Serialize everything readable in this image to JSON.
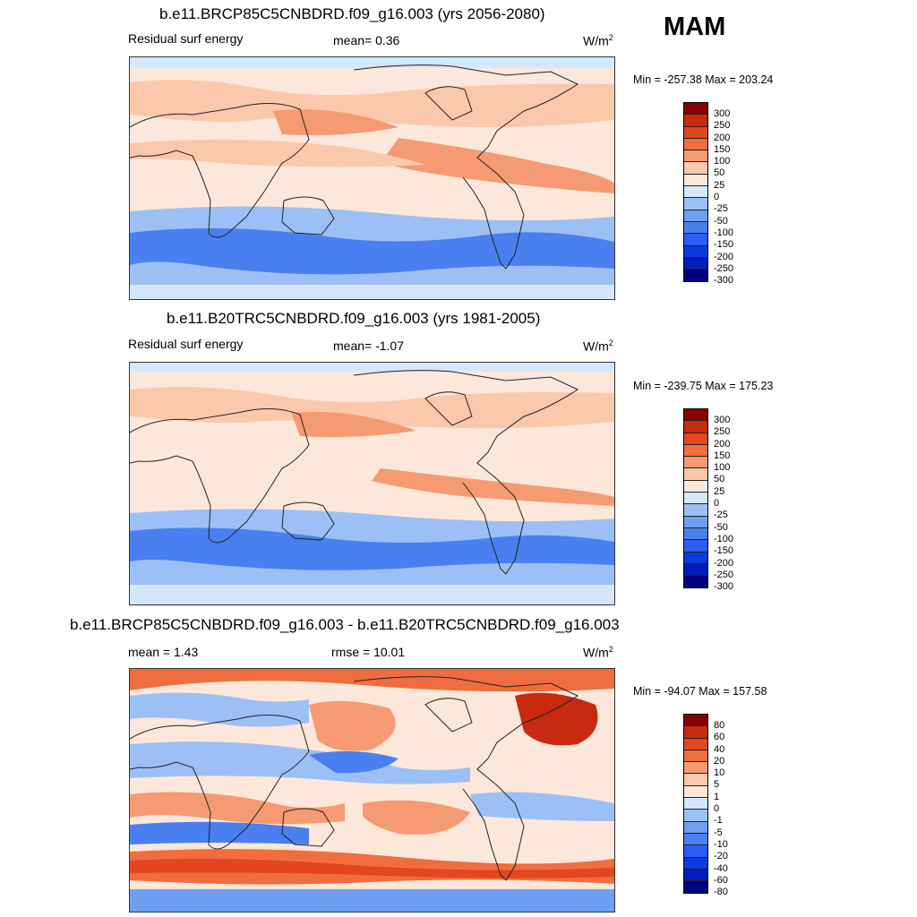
{
  "season": "MAM",
  "units": "W/m",
  "units_sup": "2",
  "colors": {
    "residual_scale": [
      "#00007a",
      "#001dbf",
      "#0a3be0",
      "#2a5ef5",
      "#4a7ff0",
      "#6f9ff0",
      "#9cc0f5",
      "#d5e7fb",
      "#fde7da",
      "#fbc8ac",
      "#f59a72",
      "#ef6d3f",
      "#e2471f",
      "#c82a10",
      "#8a0000"
    ],
    "difference_scale": [
      "#00007a",
      "#001dbf",
      "#0a3be0",
      "#2a5ef5",
      "#4a7ff0",
      "#6f9ff0",
      "#9cc0f5",
      "#d5e7fb",
      "#fde7da",
      "#fbc8ac",
      "#f59a72",
      "#ef6d3f",
      "#e2471f",
      "#c82a10",
      "#8a0000"
    ]
  },
  "chart_data": [
    {
      "type": "heatmap",
      "title": "b.e11.BRCP85C5CNBDRD.f09_g16.003 (yrs 2056-2080)",
      "left_label": "Residual surf energy",
      "stat_text": "mean=   0.36",
      "minmax": "Min = -257.38 Max = 203.24",
      "min": -257.38,
      "max": 203.24,
      "mean": 0.36,
      "colorbar_labels": [
        "300",
        "250",
        "200",
        "150",
        "100",
        "50",
        "25",
        "0",
        "-25",
        "-50",
        "-100",
        "-150",
        "-200",
        "-250",
        "-300"
      ]
    },
    {
      "type": "heatmap",
      "title": "b.e11.B20TRC5CNBDRD.f09_g16.003 (yrs 1981-2005)",
      "left_label": "Residual surf energy",
      "stat_text": "mean=   -1.07",
      "minmax": "Min = -239.75 Max = 175.23",
      "min": -239.75,
      "max": 175.23,
      "mean": -1.07,
      "colorbar_labels": [
        "300",
        "250",
        "200",
        "150",
        "100",
        "50",
        "25",
        "0",
        "-25",
        "-50",
        "-100",
        "-150",
        "-200",
        "-250",
        "-300"
      ]
    },
    {
      "type": "heatmap",
      "title": "b.e11.BRCP85C5CNBDRD.f09_g16.003 - b.e11.B20TRC5CNBDRD.f09_g16.003",
      "left_label": "mean =   1.43",
      "stat_text": "rmse =  10.01",
      "minmax": "Min = -94.07 Max = 157.58",
      "min": -94.07,
      "max": 157.58,
      "mean": 1.43,
      "rmse": 10.01,
      "colorbar_labels": [
        "80",
        "60",
        "40",
        "20",
        "10",
        "5",
        "1",
        "0",
        "-1",
        "-5",
        "-10",
        "-20",
        "-40",
        "-60",
        "-80"
      ]
    }
  ]
}
